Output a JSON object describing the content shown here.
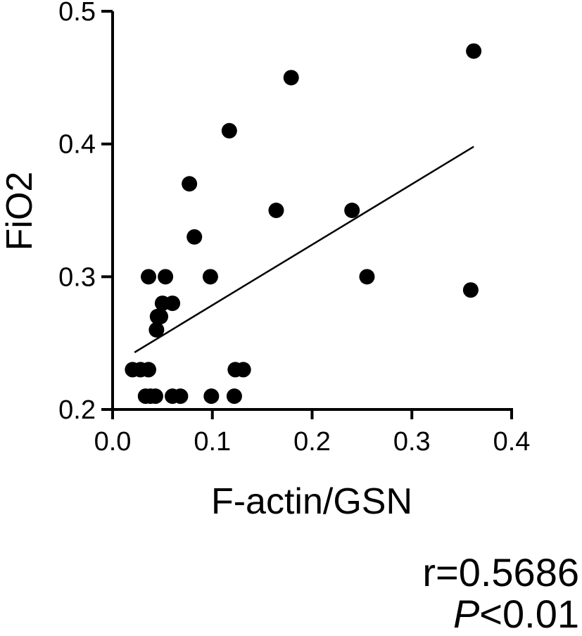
{
  "chart_data": {
    "type": "scatter",
    "xlabel": "F-actin/GSN",
    "ylabel": "FiO2",
    "xlim": [
      0.0,
      0.4
    ],
    "ylim": [
      0.2,
      0.5
    ],
    "xticks": [
      "0.0",
      "0.1",
      "0.2",
      "0.3",
      "0.4"
    ],
    "yticks": [
      "0.2",
      "0.3",
      "0.4",
      "0.5"
    ],
    "points": [
      {
        "x": 0.02,
        "y": 0.23
      },
      {
        "x": 0.028,
        "y": 0.23
      },
      {
        "x": 0.036,
        "y": 0.23
      },
      {
        "x": 0.033,
        "y": 0.21
      },
      {
        "x": 0.038,
        "y": 0.21
      },
      {
        "x": 0.043,
        "y": 0.21
      },
      {
        "x": 0.036,
        "y": 0.3
      },
      {
        "x": 0.044,
        "y": 0.26
      },
      {
        "x": 0.045,
        "y": 0.27
      },
      {
        "x": 0.048,
        "y": 0.27
      },
      {
        "x": 0.05,
        "y": 0.28
      },
      {
        "x": 0.053,
        "y": 0.3
      },
      {
        "x": 0.06,
        "y": 0.28
      },
      {
        "x": 0.06,
        "y": 0.21
      },
      {
        "x": 0.068,
        "y": 0.21
      },
      {
        "x": 0.077,
        "y": 0.37
      },
      {
        "x": 0.082,
        "y": 0.33
      },
      {
        "x": 0.098,
        "y": 0.3
      },
      {
        "x": 0.099,
        "y": 0.21
      },
      {
        "x": 0.117,
        "y": 0.41
      },
      {
        "x": 0.122,
        "y": 0.21
      },
      {
        "x": 0.123,
        "y": 0.23
      },
      {
        "x": 0.131,
        "y": 0.23
      },
      {
        "x": 0.164,
        "y": 0.35
      },
      {
        "x": 0.179,
        "y": 0.45
      },
      {
        "x": 0.24,
        "y": 0.35
      },
      {
        "x": 0.255,
        "y": 0.3
      },
      {
        "x": 0.359,
        "y": 0.29
      },
      {
        "x": 0.362,
        "y": 0.47
      }
    ],
    "fit_line": {
      "x": [
        0.022,
        0.362
      ],
      "y": [
        0.243,
        0.398
      ]
    }
  },
  "stats": {
    "r_text": "r=0.5686",
    "p_symbol": "P",
    "p_text": "<0.01"
  }
}
